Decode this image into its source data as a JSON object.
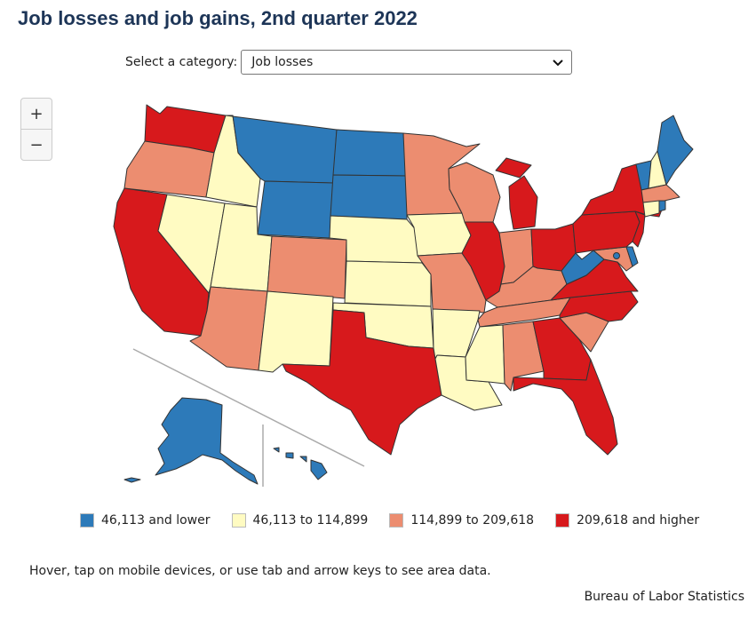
{
  "title": "Job losses and job gains, 2nd quarter 2022",
  "category_select": {
    "label": "Select a category:",
    "selected": "Job losses"
  },
  "zoom": {
    "in_label": "+",
    "out_label": "−"
  },
  "colors": {
    "low": "#2d7ab9",
    "midlow": "#fffbc2",
    "midhigh": "#ec8d70",
    "high": "#d7191c",
    "border": "#333333"
  },
  "legend": [
    {
      "label": "46,113 and lower",
      "class": "low"
    },
    {
      "label": "46,113 to 114,899",
      "class": "midlow"
    },
    {
      "label": "114,899 to 209,618",
      "class": "midhigh"
    },
    {
      "label": "209,618 and higher",
      "class": "high"
    }
  ],
  "states": {
    "WA": "high",
    "OR": "midhigh",
    "CA": "high",
    "ID": "midlow",
    "NV": "midlow",
    "MT": "low",
    "WY": "low",
    "UT": "midlow",
    "AZ": "midhigh",
    "CO": "midhigh",
    "NM": "midlow",
    "ND": "low",
    "SD": "low",
    "NE": "midlow",
    "KS": "midlow",
    "OK": "midlow",
    "TX": "high",
    "MN": "midhigh",
    "IA": "midlow",
    "MO": "midhigh",
    "AR": "midlow",
    "LA": "midlow",
    "WI": "midhigh",
    "IL": "high",
    "MI": "high",
    "IN": "midhigh",
    "OH": "high",
    "KY": "midhigh",
    "TN": "midhigh",
    "MS": "midlow",
    "AL": "midhigh",
    "GA": "high",
    "FL": "high",
    "SC": "midhigh",
    "NC": "high",
    "VA": "high",
    "WV": "low",
    "MD": "midhigh",
    "DE": "low",
    "DC": "low",
    "PA": "high",
    "NJ": "high",
    "NY": "high",
    "CT": "midlow",
    "RI": "low",
    "MA": "midhigh",
    "VT": "low",
    "NH": "midlow",
    "ME": "low",
    "AK": "low",
    "HI": "low"
  },
  "hint": "Hover, tap on mobile devices, or use tab and arrow keys to see area data.",
  "source": "Bureau of Labor Statistics"
}
